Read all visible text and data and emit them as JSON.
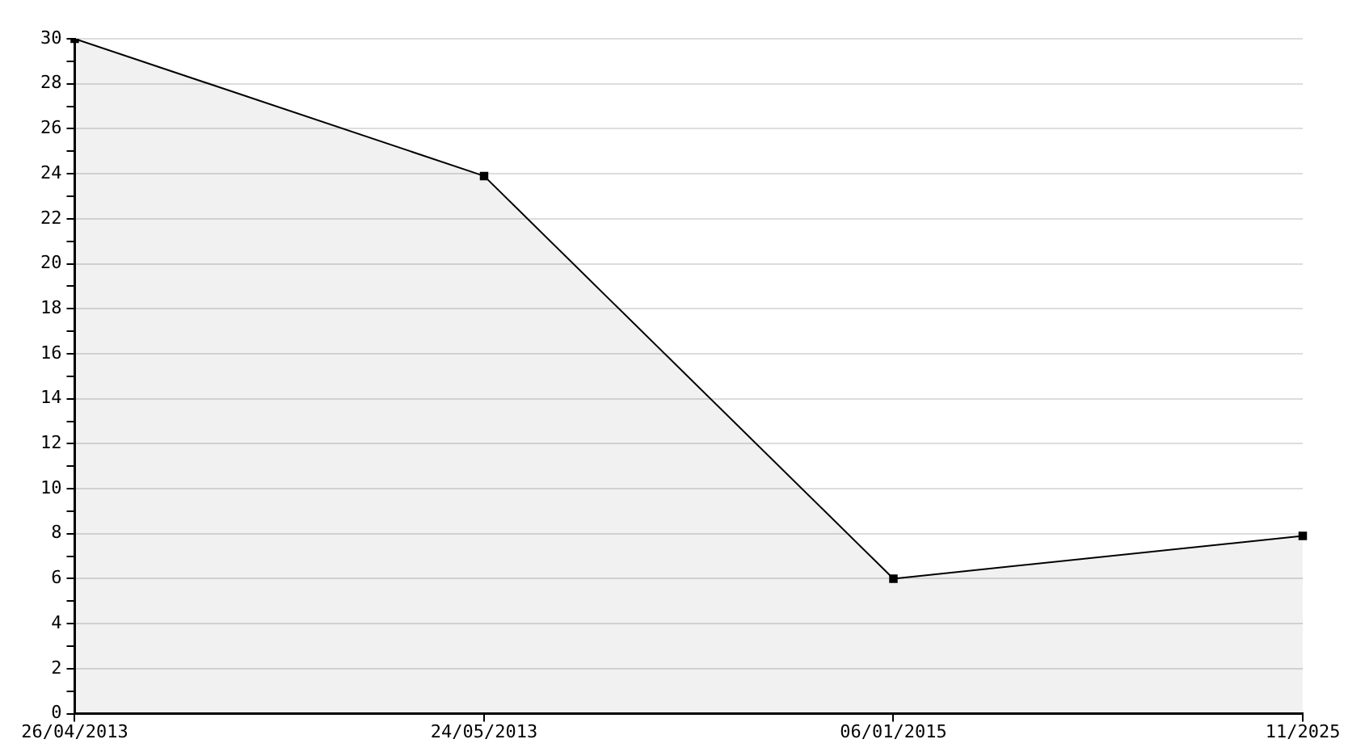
{
  "chart_data": {
    "type": "area",
    "categories": [
      "26/04/2013",
      "24/05/2013",
      "06/01/2015",
      "11/2025"
    ],
    "series": [
      {
        "color": "#000000",
        "values": [
          30,
          23.9,
          6,
          7.9
        ]
      }
    ],
    "ylim": [
      0,
      30
    ],
    "yticks": [
      0,
      {
        "value": 1,
        "label": null
      },
      2,
      {
        "value": 3,
        "label": null
      },
      4,
      {
        "value": 5,
        "label": null
      },
      6,
      {
        "value": 7,
        "label": null
      },
      8,
      {
        "value": 9,
        "label": null
      },
      10,
      {
        "value": 11,
        "label": null
      },
      12,
      {
        "value": 13,
        "label": null
      },
      14,
      {
        "value": 15,
        "label": null
      },
      16,
      {
        "value": 17,
        "label": null
      },
      18,
      {
        "value": 19,
        "label": null
      },
      20,
      {
        "value": 21,
        "label": null
      },
      22,
      {
        "value": 23,
        "label": null
      },
      24,
      {
        "value": 25,
        "label": null
      },
      26,
      {
        "value": 27,
        "label": null
      },
      28,
      {
        "value": 29,
        "label": null
      },
      30
    ],
    "grid": "y",
    "legend": false,
    "marker": "square",
    "line_style": "solid"
  }
}
